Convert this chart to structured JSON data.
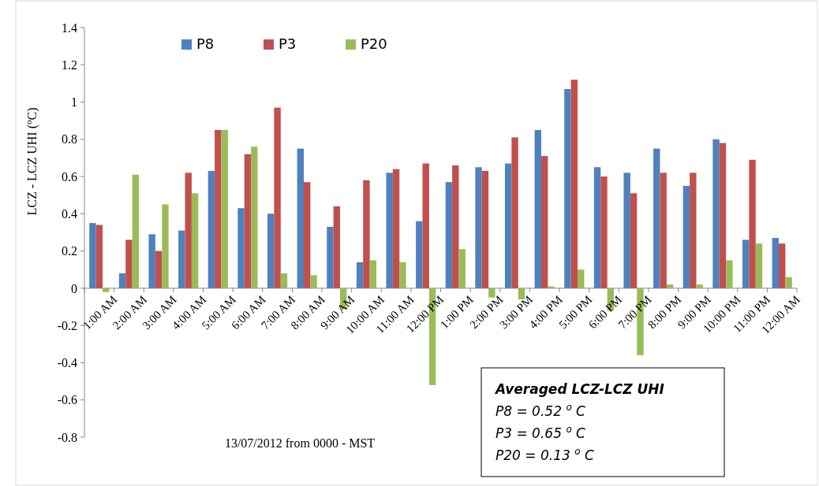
{
  "chart_data": {
    "type": "bar",
    "xlabel": "13/07/2012 from 0000 - MST",
    "ylabel": "LCZ - LCZ UHI ($^{o}$C)",
    "categories": [
      "1:00 AM",
      "2:00 AM",
      "3:00 AM",
      "4:00 AM",
      "5:00 AM",
      "6:00 AM",
      "7:00 AM",
      "8:00 AM",
      "9:00 AM",
      "10:00 AM",
      "11:00 AM",
      "12:00 PM",
      "1:00 PM",
      "2:00 PM",
      "3:00 PM",
      "4:00 PM",
      "5:00 PM",
      "6:00 PM",
      "7:00 PM",
      "8:00 PM",
      "9:00 PM",
      "10:00 PM",
      "11:00 PM",
      "12:00 AM"
    ],
    "series": [
      {
        "name": "P8",
        "color": "#4f81bd",
        "values": [
          0.35,
          0.08,
          0.29,
          0.31,
          0.63,
          0.43,
          0.4,
          0.75,
          0.33,
          0.14,
          0.62,
          0.36,
          0.57,
          0.65,
          0.67,
          0.85,
          1.07,
          0.65,
          0.62,
          0.75,
          0.55,
          0.8,
          0.26,
          0.27
        ]
      },
      {
        "name": "P3",
        "color": "#c0504d",
        "values": [
          0.34,
          0.26,
          0.2,
          0.62,
          0.85,
          0.72,
          0.97,
          0.57,
          0.44,
          0.58,
          0.64,
          0.67,
          0.66,
          0.63,
          0.81,
          0.71,
          1.12,
          0.6,
          0.51,
          0.62,
          0.62,
          0.78,
          0.69,
          0.24
        ]
      },
      {
        "name": "P20",
        "color": "#9bbb59",
        "values": [
          -0.02,
          0.61,
          0.45,
          0.51,
          0.85,
          0.76,
          0.08,
          0.07,
          -0.11,
          0.15,
          0.14,
          -0.52,
          0.21,
          -0.05,
          -0.06,
          0.01,
          0.1,
          -0.12,
          -0.36,
          0.02,
          0.02,
          0.15,
          0.24,
          0.06
        ]
      }
    ],
    "ylim": [
      -0.8,
      1.4
    ],
    "yticks": [
      -0.8,
      -0.6,
      -0.4,
      -0.2,
      0,
      0.2,
      0.4,
      0.6,
      0.8,
      1,
      1.2,
      1.4
    ],
    "grid": false,
    "legend": "top",
    "annotations": [
      "Averaged LCZ-LCZ UHI",
      "P8 = 0.52 $^{o}$ C",
      "P3 = 0.65 $^{o}$ C",
      "P20 = 0.13 $^{o}$ C"
    ]
  }
}
